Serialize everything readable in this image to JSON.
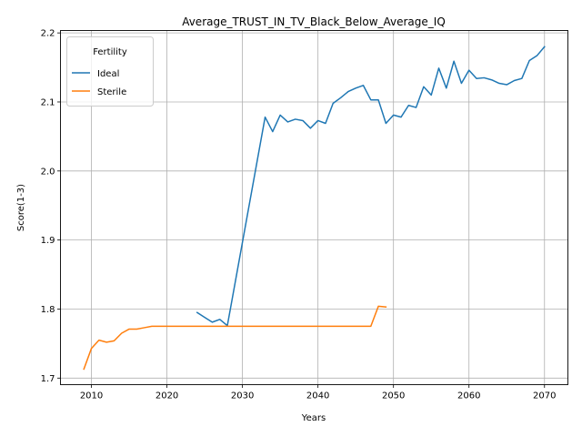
{
  "chart_data": {
    "type": "line",
    "title": "Average_TRUST_IN_TV_Black_Below_Average_IQ",
    "xlabel": "Years",
    "ylabel": "Score(1-3)",
    "xlim": [
      2005.9,
      2073.1
    ],
    "ylim": [
      1.6905,
      2.2035
    ],
    "xticks": [
      2010,
      2020,
      2030,
      2040,
      2050,
      2060,
      2070
    ],
    "yticks": [
      1.7,
      1.8,
      1.9,
      2.0,
      2.1,
      2.2
    ],
    "xtick_labels": [
      "2010",
      "2020",
      "2030",
      "2040",
      "2050",
      "2060",
      "2070"
    ],
    "ytick_labels": [
      "1.7",
      "1.8",
      "1.9",
      "2.0",
      "2.1",
      "2.2"
    ],
    "grid": true,
    "legend": {
      "title": "Fertility",
      "placement": "top-left"
    },
    "series": [
      {
        "name": "Ideal",
        "color": "#1f77b4",
        "points": [
          [
            2024,
            1.795
          ],
          [
            2025,
            1.788
          ],
          [
            2026,
            1.781
          ],
          [
            2027,
            1.785
          ],
          [
            2028,
            1.776
          ],
          [
            2033,
            2.078
          ],
          [
            2034,
            2.057
          ],
          [
            2035,
            2.081
          ],
          [
            2036,
            2.071
          ],
          [
            2037,
            2.075
          ],
          [
            2038,
            2.073
          ],
          [
            2039,
            2.062
          ],
          [
            2040,
            2.073
          ],
          [
            2041,
            2.069
          ],
          [
            2042,
            2.098
          ],
          [
            2043,
            2.106
          ],
          [
            2044,
            2.115
          ],
          [
            2045,
            2.12
          ],
          [
            2046,
            2.124
          ],
          [
            2047,
            2.103
          ],
          [
            2048,
            2.103
          ],
          [
            2049,
            2.069
          ],
          [
            2050,
            2.081
          ],
          [
            2051,
            2.078
          ],
          [
            2052,
            2.095
          ],
          [
            2053,
            2.092
          ],
          [
            2054,
            2.122
          ],
          [
            2055,
            2.11
          ],
          [
            2056,
            2.149
          ],
          [
            2057,
            2.12
          ],
          [
            2058,
            2.159
          ],
          [
            2059,
            2.127
          ],
          [
            2060,
            2.146
          ],
          [
            2061,
            2.134
          ],
          [
            2062,
            2.135
          ],
          [
            2063,
            2.132
          ],
          [
            2064,
            2.127
          ],
          [
            2065,
            2.125
          ],
          [
            2066,
            2.131
          ],
          [
            2067,
            2.134
          ],
          [
            2068,
            2.16
          ],
          [
            2069,
            2.167
          ],
          [
            2070,
            2.18
          ]
        ]
      },
      {
        "name": "Sterile",
        "color": "#ff7f0e",
        "points": [
          [
            2009,
            1.713
          ],
          [
            2010,
            1.743
          ],
          [
            2011,
            1.755
          ],
          [
            2012,
            1.752
          ],
          [
            2013,
            1.754
          ],
          [
            2014,
            1.765
          ],
          [
            2015,
            1.771
          ],
          [
            2016,
            1.771
          ],
          [
            2017,
            1.773
          ],
          [
            2018,
            1.775
          ],
          [
            2019,
            1.775
          ],
          [
            2020,
            1.775
          ],
          [
            2021,
            1.775
          ],
          [
            2022,
            1.775
          ],
          [
            2023,
            1.775
          ],
          [
            2024,
            1.775
          ],
          [
            2025,
            1.775
          ],
          [
            2026,
            1.775
          ],
          [
            2027,
            1.775
          ],
          [
            2028,
            1.775
          ],
          [
            2029,
            1.775
          ],
          [
            2030,
            1.775
          ],
          [
            2031,
            1.775
          ],
          [
            2032,
            1.775
          ],
          [
            2033,
            1.775
          ],
          [
            2034,
            1.775
          ],
          [
            2035,
            1.775
          ],
          [
            2036,
            1.775
          ],
          [
            2037,
            1.775
          ],
          [
            2038,
            1.775
          ],
          [
            2039,
            1.775
          ],
          [
            2040,
            1.775
          ],
          [
            2041,
            1.775
          ],
          [
            2042,
            1.775
          ],
          [
            2043,
            1.775
          ],
          [
            2044,
            1.775
          ],
          [
            2045,
            1.775
          ],
          [
            2046,
            1.775
          ],
          [
            2047,
            1.775
          ],
          [
            2048,
            1.804
          ],
          [
            2049,
            1.803
          ]
        ]
      }
    ]
  }
}
